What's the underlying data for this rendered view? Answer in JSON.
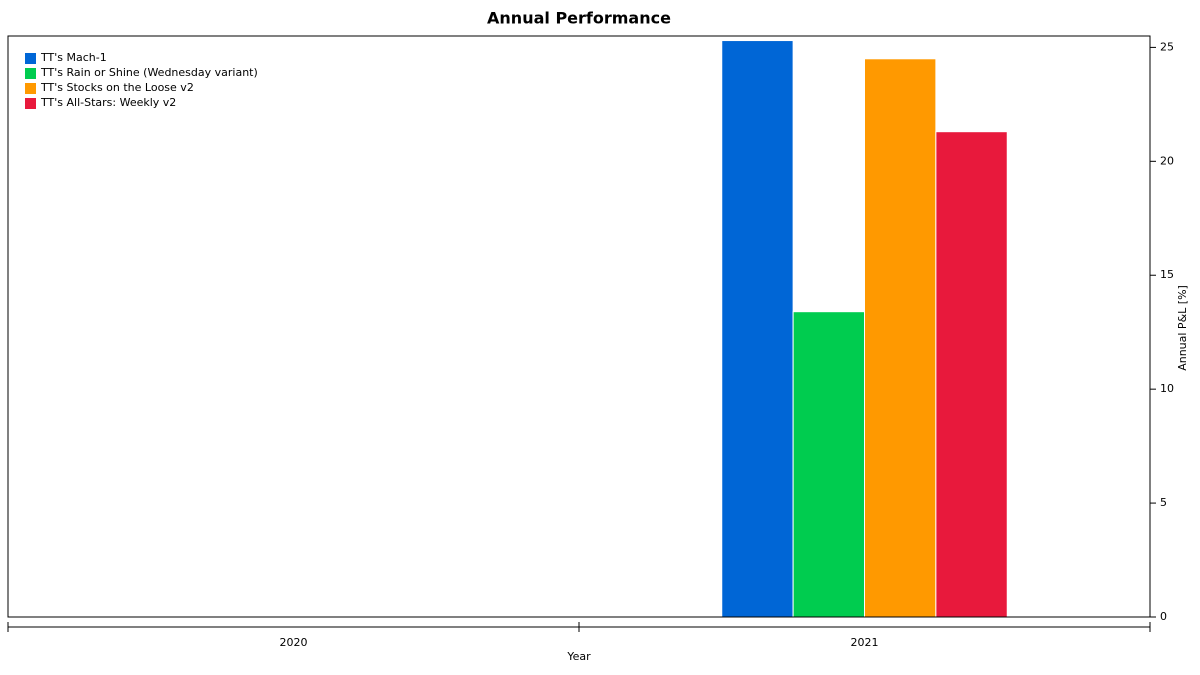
{
  "chart_data": {
    "type": "bar",
    "title": "Annual Performance",
    "x_label": "Year",
    "y_label": "Annual P&L [%]",
    "categories": [
      "2020",
      "2021"
    ],
    "series": [
      {
        "name": "TT's Mach-1",
        "color": "#0066d6",
        "values": [
          null,
          25.3
        ]
      },
      {
        "name": "TT's Rain or Shine (Wednesday variant)",
        "color": "#00cc4f",
        "values": [
          null,
          13.4
        ]
      },
      {
        "name": "TT's Stocks on the Loose v2",
        "color": "#ff9900",
        "values": [
          null,
          24.5
        ]
      },
      {
        "name": "TT's All-Stars: Weekly v2",
        "color": "#e8193c",
        "values": [
          null,
          21.3
        ]
      }
    ],
    "ylim": [
      0,
      25.5
    ],
    "yticks": [
      0,
      5,
      10,
      15,
      20,
      25
    ],
    "legend": "top-left"
  }
}
